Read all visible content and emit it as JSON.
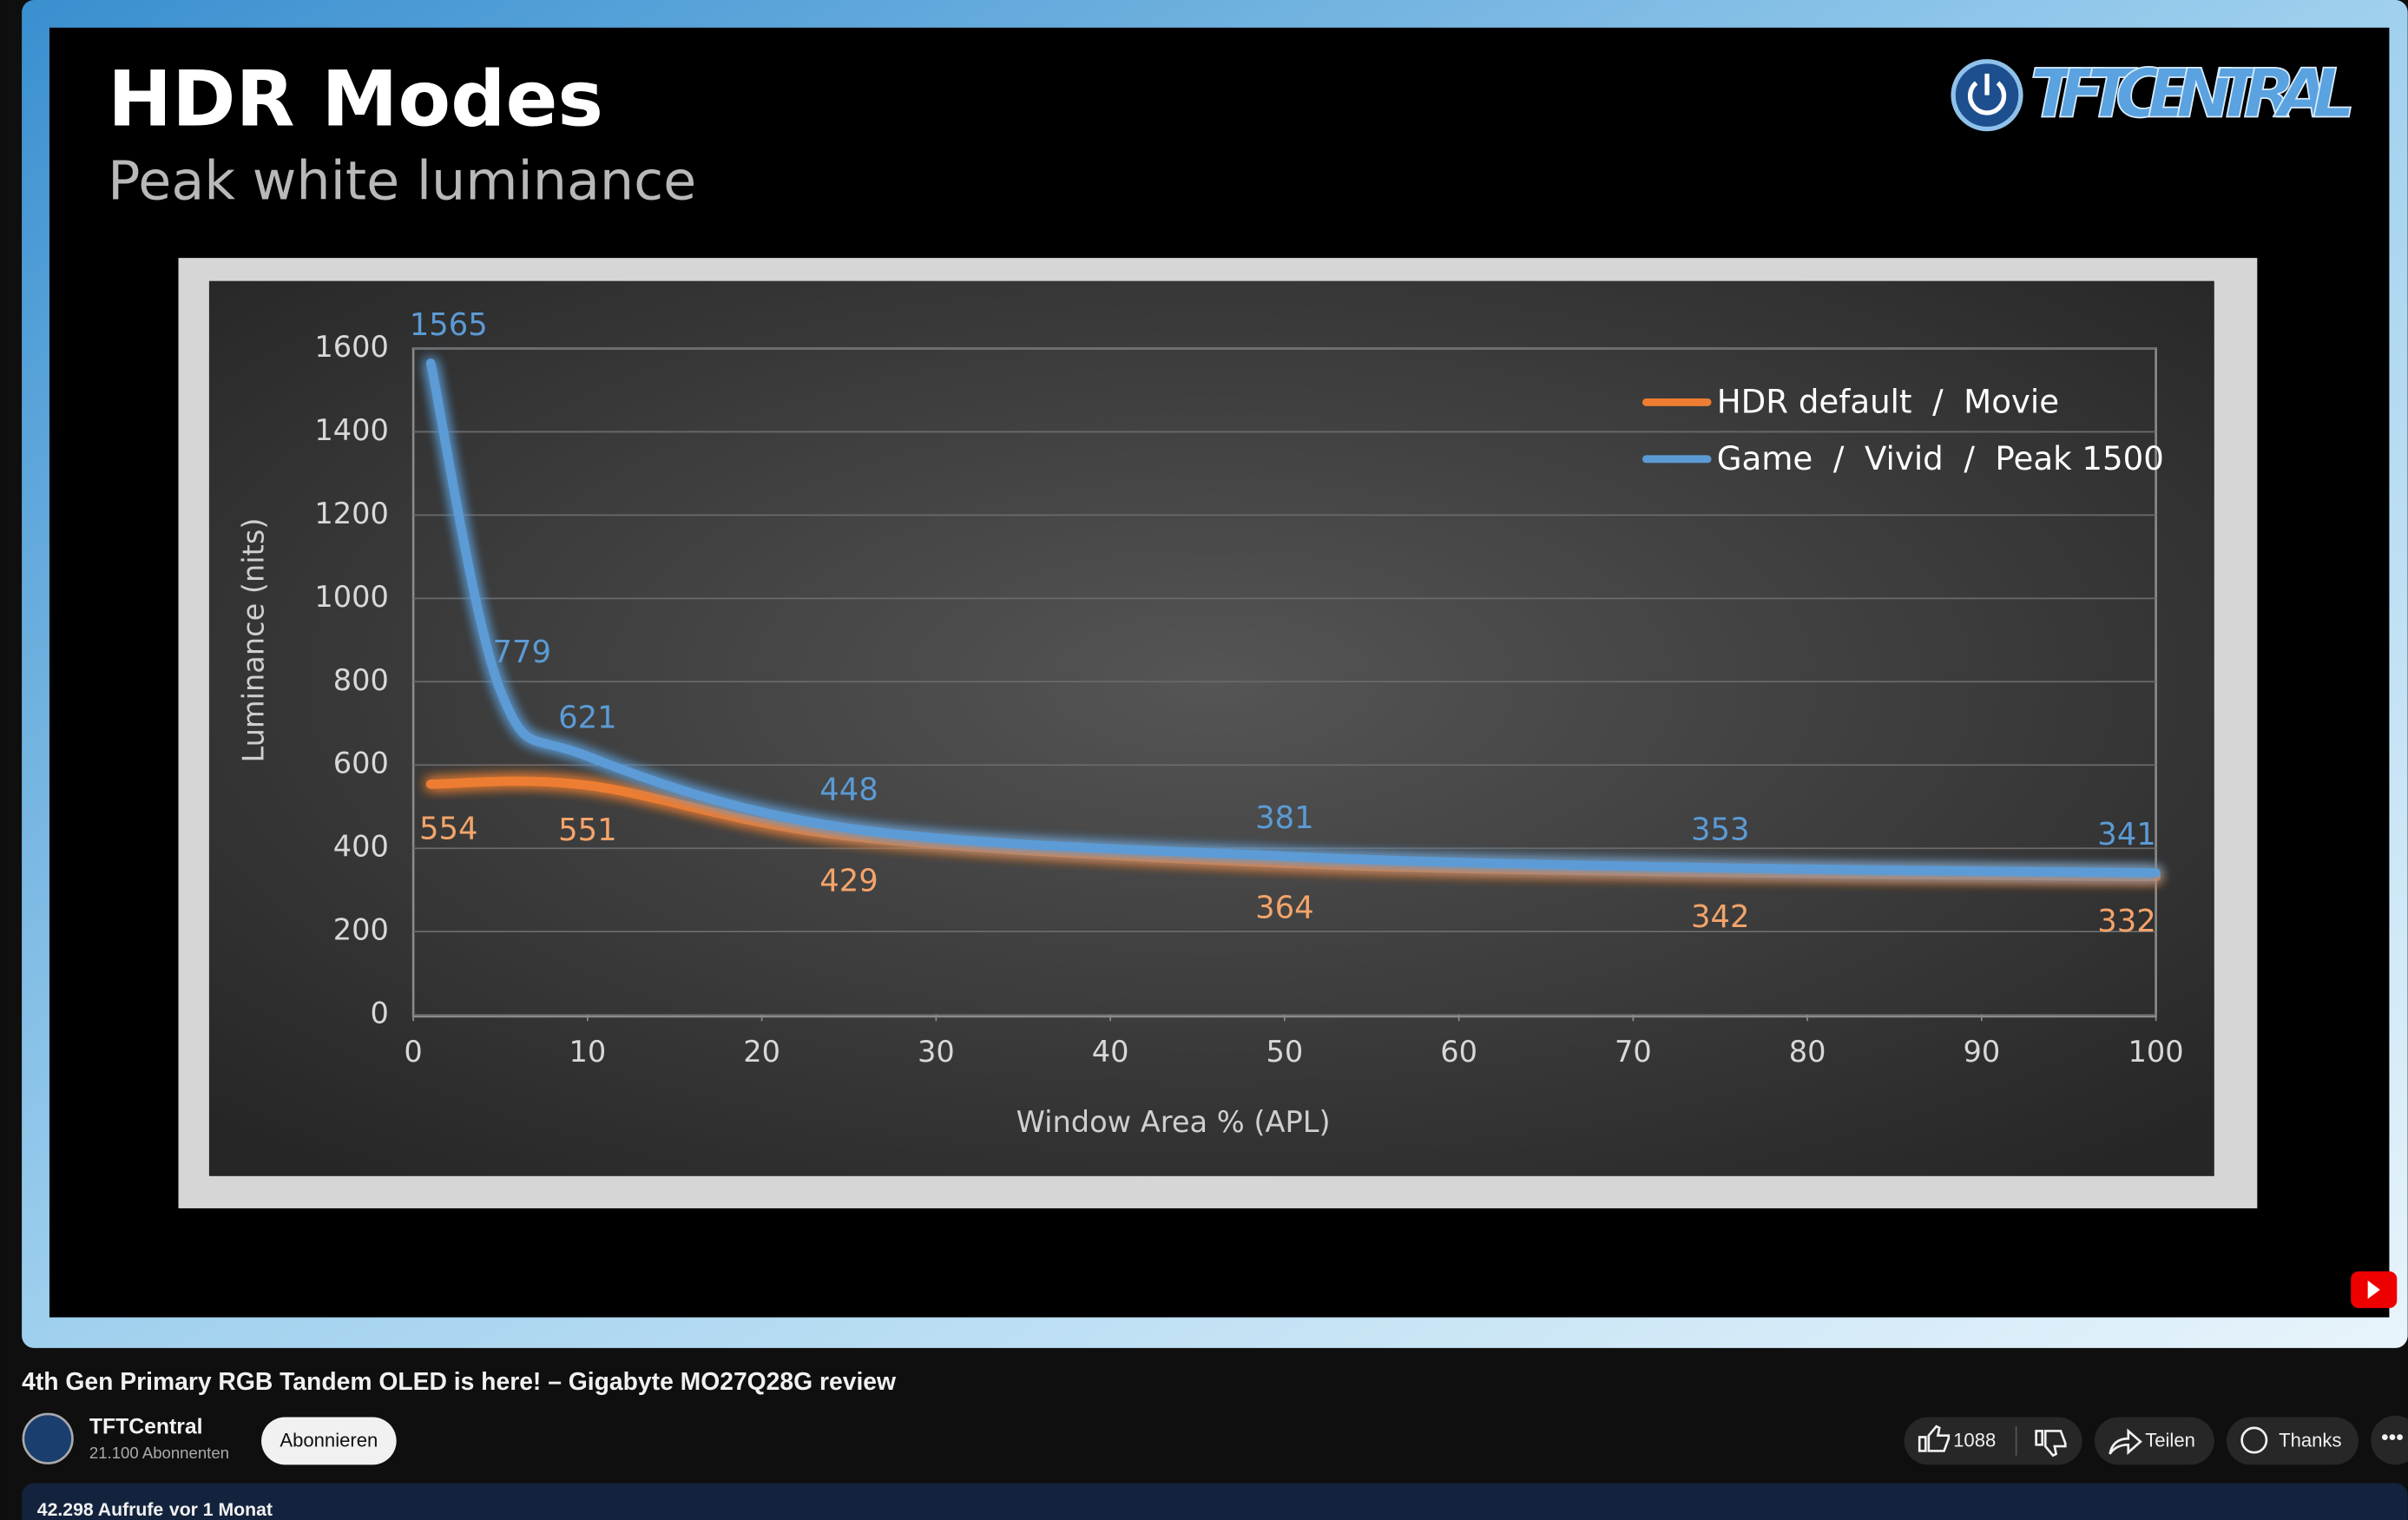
{
  "chart_data": {
    "type": "line",
    "title": "HDR Modes",
    "subtitle": "Peak white luminance",
    "xlabel": "Window Area % (APL)",
    "ylabel": "Luminance (nits)",
    "xlim": [
      0,
      100
    ],
    "xticks": [
      0,
      10,
      20,
      30,
      40,
      50,
      60,
      70,
      80,
      90,
      100
    ],
    "ylim": [
      0,
      1600
    ],
    "yticks": [
      0,
      200,
      400,
      600,
      800,
      1000,
      1200,
      1400,
      1600
    ],
    "grid": true,
    "legend": "upper right",
    "series": [
      {
        "name": "HDR default  /  Movie",
        "color": "#ed7d31",
        "x": [
          1,
          10,
          25,
          50,
          75,
          100
        ],
        "values": [
          554,
          551,
          429,
          364,
          342,
          332
        ]
      },
      {
        "name": "Game  /  Vivid  /  Peak 1500",
        "color": "#5b9bd5",
        "x": [
          1,
          5,
          10,
          25,
          50,
          75,
          100
        ],
        "values": [
          1565,
          779,
          621,
          448,
          381,
          353,
          341
        ]
      }
    ]
  },
  "logo": "TFTCENTRAL",
  "video": {
    "title": "4th Gen Primary RGB Tandem OLED is here! – Gigabyte MO27Q28G review",
    "channel": "TFTCentral",
    "subscribers": "21.100 Abonnenten",
    "subscribe_button": "Abonnieren",
    "likes": "1088",
    "share": "Teilen",
    "thanks": "Thanks",
    "views": "42.298 Aufrufe",
    "age": "vor 1 Monat"
  }
}
